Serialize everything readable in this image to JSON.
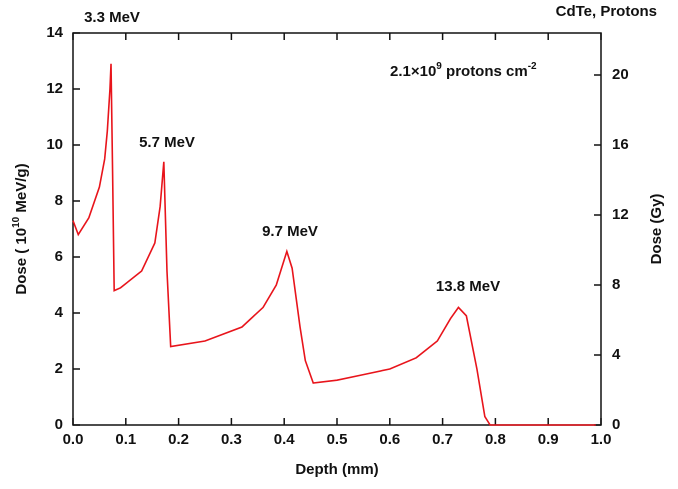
{
  "chart_data": {
    "type": "line",
    "title": "CdTe, Protons",
    "annotation": [
      "2.1×10",
      "9",
      " protons cm",
      "-2"
    ],
    "peak_labels": [
      "3.3 MeV",
      "5.7 MeV",
      "9.7 MeV",
      "13.8 MeV"
    ],
    "xlabel": "Depth (mm)",
    "ylabel": [
      "Dose ( 10",
      "10",
      " MeV/g)"
    ],
    "y2label": "Dose (Gy)",
    "xlim": [
      0,
      1
    ],
    "ylim": [
      0,
      14
    ],
    "y2lim": [
      0,
      22.4
    ],
    "xticks": [
      {
        "value": 0,
        "label": "0.0"
      },
      0.1,
      0.2,
      0.3,
      0.4,
      0.5,
      0.6,
      0.7,
      0.8,
      0.9,
      {
        "value": 1,
        "label": "1.0"
      }
    ],
    "yticks": [
      0,
      2,
      4,
      6,
      8,
      10,
      12,
      14
    ],
    "y2ticks": [
      0,
      4,
      8,
      12,
      16,
      20
    ],
    "series": [
      {
        "color": "#e8141b",
        "x": [
          0,
          0.01,
          0.03,
          0.05,
          0.06,
          0.065,
          0.07,
          0.072,
          0.075,
          0.078,
          0.09,
          0.13,
          0.155,
          0.165,
          0.172,
          0.178,
          0.185,
          0.25,
          0.32,
          0.36,
          0.385,
          0.405,
          0.415,
          0.43,
          0.44,
          0.455,
          0.5,
          0.55,
          0.6,
          0.65,
          0.69,
          0.715,
          0.73,
          0.745,
          0.765,
          0.78,
          0.79,
          0.99
        ],
        "values": [
          7.3,
          6.8,
          7.4,
          8.5,
          9.5,
          10.5,
          12.0,
          12.9,
          9.0,
          4.8,
          4.9,
          5.5,
          6.5,
          7.8,
          9.4,
          5.5,
          2.8,
          3.0,
          3.5,
          4.2,
          5.0,
          6.2,
          5.6,
          3.5,
          2.3,
          1.5,
          1.6,
          1.8,
          2.0,
          2.4,
          3.0,
          3.8,
          4.2,
          3.9,
          2.0,
          0.3,
          0,
          0
        ]
      }
    ]
  }
}
